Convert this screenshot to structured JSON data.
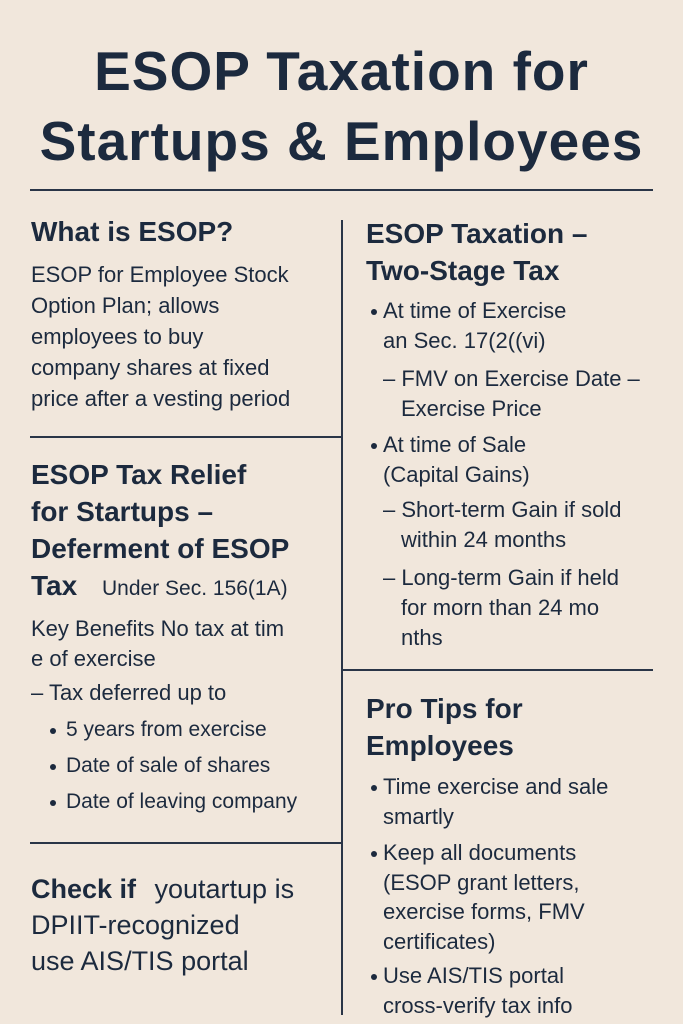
{
  "header": {
    "title_lines": [
      "ESOP Taxation for",
      "Startups & Employees"
    ]
  },
  "left": {
    "what": {
      "heading": "What is ESOP?",
      "lines": [
        "ESOP for Employee Stock",
        "Option Plan; allows",
        "employees to buy",
        "company shares at fixed",
        "price after a vesting period"
      ]
    },
    "relief": {
      "heading_lines": [
        "ESOP Tax Relief",
        "for Startups –",
        "Deferment of ESOP",
        "Tax"
      ],
      "note": "Under Sec. 156(1A)",
      "benefit_lines": [
        "Key Benefits No tax at tim",
        "e of exercise"
      ],
      "deferred": "– Tax deferred up to",
      "options": [
        "5 years from exercise",
        "Date of sale of shares",
        "Date of leaving company"
      ]
    },
    "check": {
      "bold": "Check if",
      "lines": [
        " youtartup is",
        "DPIIT-recognized",
        "use AIS/TIS portal"
      ]
    }
  },
  "right": {
    "stages": {
      "heading_lines": [
        "ESOP Taxation –",
        "Two-Stage Tax"
      ],
      "items": [
        {
          "lines": [
            "At time of Exercise",
            "an Sec. 17(2((vi)"
          ],
          "subs": [
            [
              "– FMV on Exercise Date –",
              "Exercise Price"
            ]
          ]
        },
        {
          "lines": [
            "At time of Sale",
            "(Capital Gains)"
          ],
          "subs": [
            [
              "– Short-term Gain if sold",
              "within 24 months"
            ],
            [
              "– Long-term Gain if held",
              "for morn than 24 mo",
              "nths"
            ]
          ]
        }
      ]
    },
    "tips": {
      "heading_lines": [
        "Pro Tips for",
        "Employees"
      ],
      "items": [
        [
          "Time exercise and sale",
          "smartly"
        ],
        [
          "Keep all documents",
          "(ESOP grant letters,",
          "exercise forms, FMV",
          "certificates)"
        ],
        [
          "Use AIS/TIS portal",
          "cross-verify tax info"
        ]
      ]
    }
  }
}
